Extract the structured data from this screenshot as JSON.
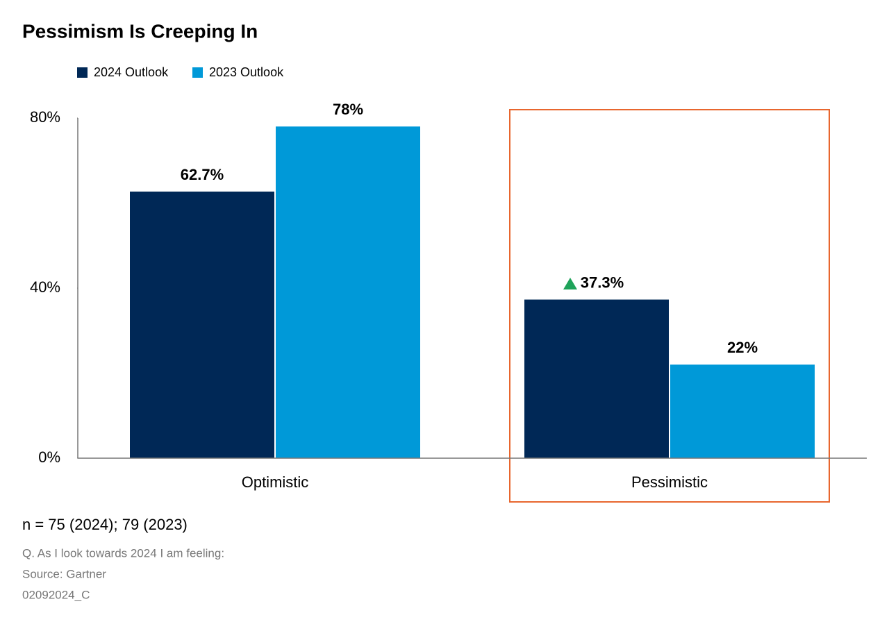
{
  "chart_data": {
    "type": "bar",
    "title": "Pessimism Is Creeping In",
    "categories": [
      "Optimistic",
      "Pessimistic"
    ],
    "series": [
      {
        "name": "2024 Outlook",
        "color": "#002856",
        "values": [
          62.7,
          37.3
        ],
        "value_labels": [
          "62.7%",
          "37.3%"
        ]
      },
      {
        "name": "2023 Outlook",
        "color": "#0099d8",
        "values": [
          78,
          22
        ],
        "value_labels": [
          "78%",
          "22%"
        ]
      }
    ],
    "ylim": [
      0,
      80
    ],
    "yticks": [
      {
        "value": 0,
        "label": "0%"
      },
      {
        "value": 40,
        "label": "40%"
      },
      {
        "value": 80,
        "label": "80%"
      }
    ],
    "notes": [
      "n = 75 (2024); 79 (2023)",
      "Q. As I look towards 2024 I am feeling:",
      "Source: Gartner",
      "02092024_C"
    ]
  }
}
